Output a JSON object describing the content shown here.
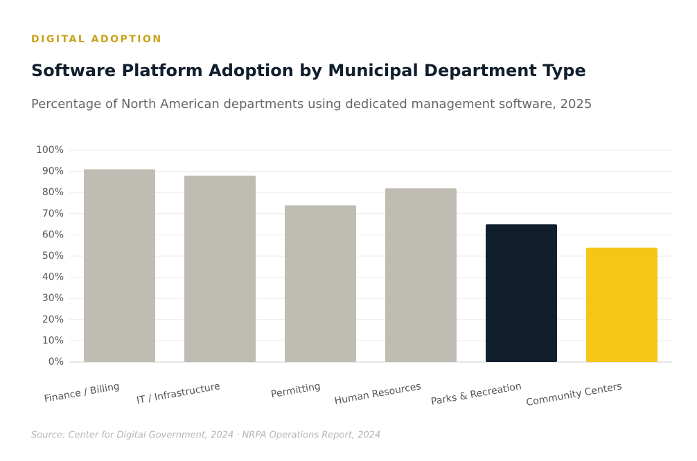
{
  "chart_data": {
    "type": "bar",
    "eyebrow": "DIGITAL ADOPTION",
    "title": "Software Platform Adoption by Municipal Department Type",
    "subtitle": "Percentage of North American departments using dedicated management software, 2025",
    "source": "Source: Center for Digital Government, 2024 · NRPA Operations Report, 2024",
    "categories": [
      "Finance / Billing",
      "IT / Infrastructure",
      "Permitting",
      "Human Resources",
      "Parks & Recreation",
      "Community Centers"
    ],
    "values": [
      91,
      88,
      74,
      82,
      65,
      54
    ],
    "colors": [
      "#bfbcb3",
      "#bfbcb3",
      "#bfbcb3",
      "#bfbcb3",
      "#111e2d",
      "#f5c518"
    ],
    "ylim": [
      0,
      100
    ],
    "yticks": [
      {
        "value": 0,
        "label": "0%"
      },
      {
        "value": 10,
        "label": "10%"
      },
      {
        "value": 20,
        "label": "20%"
      },
      {
        "value": 30,
        "label": "30%"
      },
      {
        "value": 40,
        "label": "40%"
      },
      {
        "value": 50,
        "label": "50%"
      },
      {
        "value": 60,
        "label": "60%"
      },
      {
        "value": 70,
        "label": "70%"
      },
      {
        "value": 80,
        "label": "80%"
      },
      {
        "value": 90,
        "label": "90%"
      },
      {
        "value": 100,
        "label": "100%"
      }
    ],
    "grid": true
  }
}
